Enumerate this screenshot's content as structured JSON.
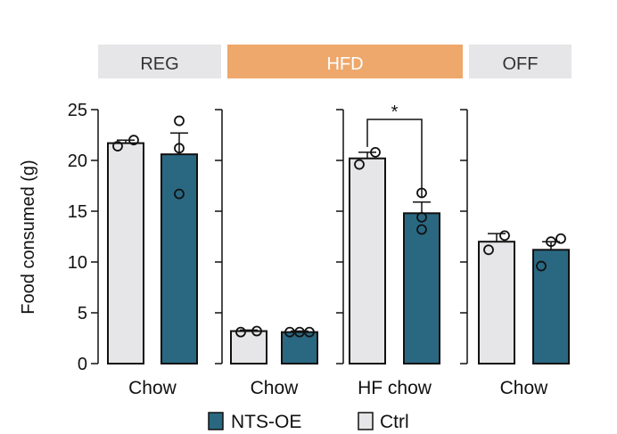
{
  "chart_data": {
    "type": "bar",
    "title": "",
    "ylabel": "Food consumed (g)",
    "ylim": [
      0,
      25
    ],
    "yticks": [
      0,
      5,
      10,
      15,
      20,
      25
    ],
    "grid": false,
    "legend_position": "bottom",
    "phases": [
      {
        "label": "REG",
        "color": "#e6e6e8"
      },
      {
        "label": "HFD",
        "color": "#eea86c"
      },
      {
        "label": "OFF",
        "color": "#e6e6e8"
      }
    ],
    "series": [
      {
        "name": "NTS-OE",
        "color": "#2a6882"
      },
      {
        "name": "Ctrl",
        "color": "#e6e6e8"
      }
    ],
    "panels": [
      {
        "category": "Chow",
        "phase": "REG",
        "bars": [
          {
            "series": "Ctrl",
            "value": 21.7,
            "error": 0.3,
            "points": [
              21.4,
              22.0
            ]
          },
          {
            "series": "NTS-OE",
            "value": 20.6,
            "error": 2.1,
            "points": [
              16.7,
              21.2,
              23.9
            ]
          }
        ]
      },
      {
        "category": "Chow",
        "phase": "HFD",
        "bars": [
          {
            "series": "Ctrl",
            "value": 3.2,
            "error": 0.1,
            "points": [
              3.1,
              3.2
            ]
          },
          {
            "series": "NTS-OE",
            "value": 3.1,
            "error": 0.1,
            "points": [
              3.1,
              3.1,
              3.1
            ]
          }
        ]
      },
      {
        "category": "HF chow",
        "phase": "HFD",
        "bars": [
          {
            "series": "Ctrl",
            "value": 20.2,
            "error": 0.6,
            "points": [
              19.6,
              20.8
            ]
          },
          {
            "series": "NTS-OE",
            "value": 14.8,
            "error": 1.1,
            "points": [
              13.2,
              14.4,
              16.8
            ]
          }
        ],
        "significance": "*"
      },
      {
        "category": "Chow",
        "phase": "OFF",
        "bars": [
          {
            "series": "Ctrl",
            "value": 12.0,
            "error": 0.8,
            "points": [
              11.2,
              12.6
            ]
          },
          {
            "series": "NTS-OE",
            "value": 11.2,
            "error": 0.8,
            "points": [
              9.6,
              12.0,
              12.3
            ]
          }
        ]
      }
    ]
  }
}
